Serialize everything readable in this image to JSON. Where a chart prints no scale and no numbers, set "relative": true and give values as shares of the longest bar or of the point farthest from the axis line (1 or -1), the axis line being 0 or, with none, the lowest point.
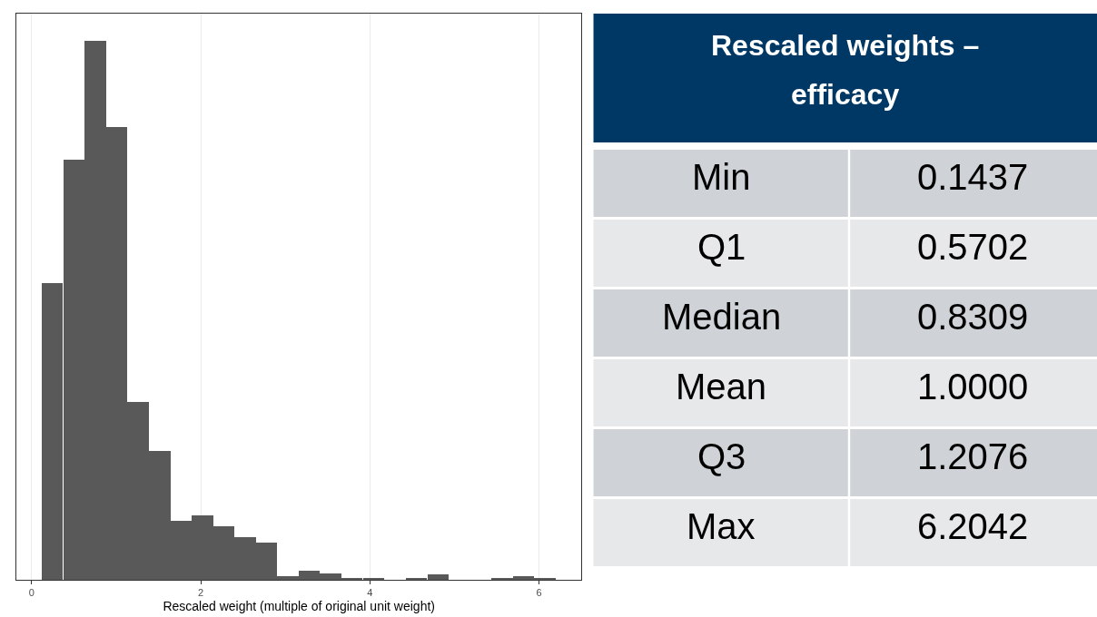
{
  "chart_data": [
    {
      "type": "bar",
      "relative": true,
      "xlabel": "Rescaled weight (multiple of original unit weight)",
      "color": "#595959",
      "x": [
        0.245,
        0.5,
        0.755,
        1.005,
        1.26,
        1.515,
        1.765,
        2.02,
        2.275,
        2.525,
        2.775,
        3.03,
        3.285,
        3.535,
        3.79,
        4.045,
        4.295,
        4.55,
        4.805,
        5.055,
        5.31,
        5.565,
        5.815,
        6.07
      ],
      "values": [
        0.55,
        0.78,
        1,
        0.84,
        0.33,
        0.24,
        0.11,
        0.12,
        0.1,
        0.08,
        0.07,
        0.007,
        0.017,
        0.012,
        0.003,
        0.003,
        0,
        0.003,
        0.01,
        0,
        0,
        0.003,
        0.007,
        0.003
      ],
      "xlim": [
        -0.18,
        6.5
      ],
      "xticks": [
        0,
        2,
        4,
        6
      ],
      "grid": "x"
    },
    {
      "type": "other",
      "title": "Rescaled weights – efficacy",
      "categories": [
        "Min",
        "Q1",
        "Median",
        "Mean",
        "Q3",
        "Max"
      ],
      "value_labels": [
        "0.1437",
        "0.5702",
        "0.8309",
        "1.0000",
        "1.2076",
        "6.2042"
      ]
    }
  ]
}
